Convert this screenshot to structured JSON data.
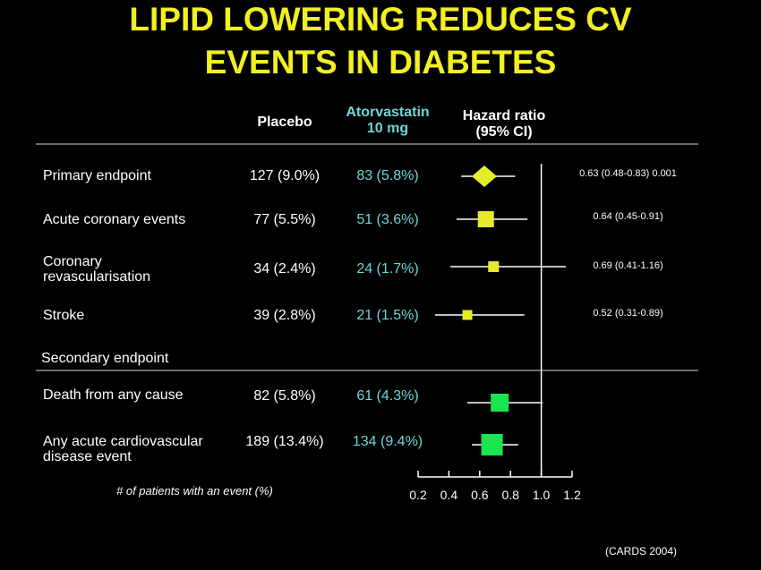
{
  "title": {
    "line1": "LIPID LOWERING REDUCES CV",
    "line2": "EVENTS IN DIABETES"
  },
  "headers": {
    "placebo": "Placebo",
    "atorvastatin_line1": "Atorvastatin",
    "atorvastatin_line2": "10 mg",
    "hazard_line1": "Hazard ratio",
    "hazard_line2": "(95% CI)"
  },
  "secondary_heading": "Secondary endpoint",
  "footnote": "# of patients with an event (%)",
  "source": "(CARDS 2004)",
  "colors": {
    "title": "#f2ef22",
    "atorvastatin": "#6fd6d8",
    "primary_marker": "#e7ec2a",
    "secondary_marker": "#19e650"
  },
  "chart_data": {
    "type": "forest",
    "xlim": [
      0.2,
      1.2
    ],
    "x_ticks": [
      "0.2",
      "0.4",
      "0.6",
      "0.8",
      "1.0",
      "1.2"
    ],
    "reference_line": 1.0,
    "rows": [
      {
        "label_lines": [
          "Primary endpoint"
        ],
        "placebo": "127 (9.0%)",
        "atorvastatin": "83 (5.8%)",
        "hr": 0.63,
        "ci": [
          0.48,
          0.83
        ],
        "hr_text": "0.63 (0.48-0.83) 0.001",
        "marker": "diamond",
        "group": "primary"
      },
      {
        "label_lines": [
          "Acute coronary events"
        ],
        "placebo": "77 (5.5%)",
        "atorvastatin": "51 (3.6%)",
        "hr": 0.64,
        "ci": [
          0.45,
          0.91
        ],
        "hr_text": "0.64 (0.45-0.91)",
        "marker": "square",
        "group": "primary"
      },
      {
        "label_lines": [
          "Coronary",
          "revascularisation"
        ],
        "placebo": "34 (2.4%)",
        "atorvastatin": "24 (1.7%)",
        "hr": 0.69,
        "ci": [
          0.41,
          1.16
        ],
        "hr_text": "0.69 (0.41-1.16)",
        "marker": "square",
        "group": "primary"
      },
      {
        "label_lines": [
          "Stroke"
        ],
        "placebo": "39 (2.8%)",
        "atorvastatin": "21 (1.5%)",
        "hr": 0.52,
        "ci": [
          0.31,
          0.89
        ],
        "hr_text": "0.52 (0.31-0.89)",
        "marker": "square",
        "group": "primary"
      },
      {
        "label_lines": [
          "Death from any cause"
        ],
        "placebo": "82 (5.8%)",
        "atorvastatin": "61 (4.3%)",
        "hr": 0.73,
        "ci": [
          0.52,
          1.01
        ],
        "hr_text": "",
        "marker": "square",
        "group": "secondary"
      },
      {
        "label_lines": [
          "Any acute cardiovascular",
          "disease event"
        ],
        "placebo": "189 (13.4%)",
        "atorvastatin": "134 (9.4%)",
        "hr": 0.68,
        "ci": [
          0.55,
          0.85
        ],
        "hr_text": "",
        "marker": "square",
        "group": "secondary"
      }
    ]
  }
}
